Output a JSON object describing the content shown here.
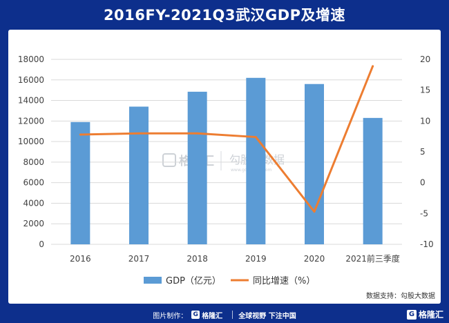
{
  "header": {
    "title": "2016FY-2021Q3武汉GDP及增速"
  },
  "chart_data": {
    "type": "bar",
    "categories": [
      "2016",
      "2017",
      "2018",
      "2019",
      "2020",
      "2021前三季度"
    ],
    "series": [
      {
        "name": "GDP（亿元）",
        "type": "bar",
        "axis": "left",
        "color": "#5b9bd5",
        "values": [
          11900,
          13400,
          14850,
          16200,
          15600,
          12300
        ]
      },
      {
        "name": "同比增速（%）",
        "type": "line",
        "axis": "right",
        "color": "#ed7d31",
        "values": [
          7.8,
          8.0,
          8.0,
          7.4,
          -4.7,
          18.9
        ]
      }
    ],
    "y_left": {
      "min": 0,
      "max": 18000,
      "step": 2000,
      "ticks": [
        "0",
        "2000",
        "4000",
        "6000",
        "8000",
        "10000",
        "12000",
        "14000",
        "16000",
        "18000"
      ]
    },
    "y_right": {
      "min": -10,
      "max": 20,
      "step": 5,
      "ticks": [
        "-10",
        "-5",
        "0",
        "5",
        "10",
        "15",
        "20"
      ]
    },
    "legend_position": "bottom",
    "source": "数据支持：勾股大数据"
  },
  "watermark": {
    "brand": "格隆汇",
    "brand_sub": "勾股大数据",
    "url": "www.gogudata.com"
  },
  "footer": {
    "made_by": "图片制作：",
    "brand": "格隆汇",
    "slogan": "全球视野 下注中国"
  },
  "corner": {
    "brand": "格隆汇"
  }
}
